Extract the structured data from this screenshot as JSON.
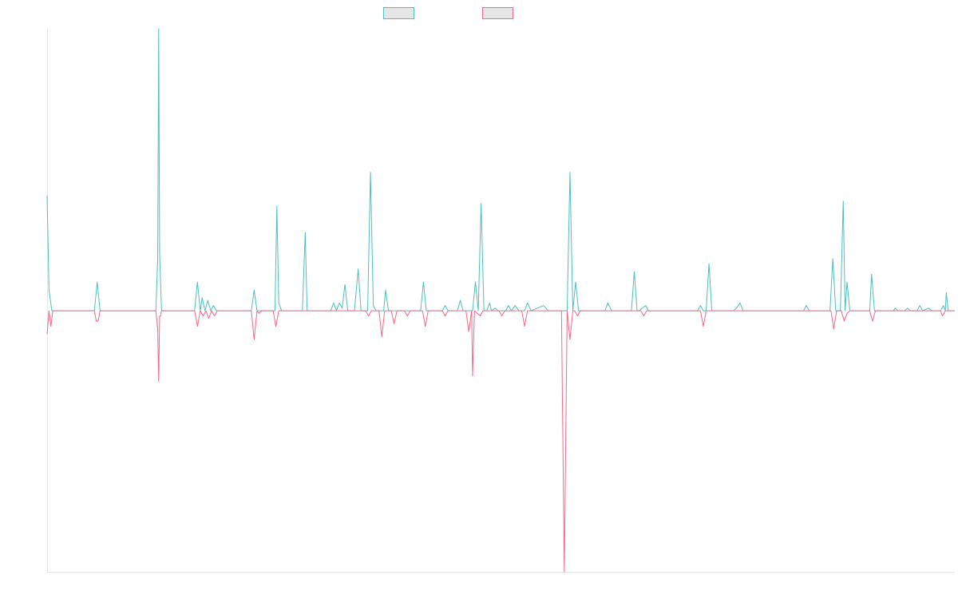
{
  "chart_data": {
    "type": "line",
    "title": "",
    "xlabel": "",
    "ylabel": "",
    "legend_position": "top",
    "grid": false,
    "ylim": [
      -100,
      108
    ],
    "series": [
      {
        "name": "",
        "color": "#4bc0c0",
        "points": [
          [
            0,
            44
          ],
          [
            2,
            8
          ],
          [
            5,
            0
          ],
          [
            12,
            0
          ],
          [
            50,
            0
          ],
          [
            53,
            11
          ],
          [
            56,
            0
          ],
          [
            115,
            0
          ],
          [
            117,
            20
          ],
          [
            118,
            108
          ],
          [
            119,
            22
          ],
          [
            121,
            0
          ],
          [
            156,
            0
          ],
          [
            159,
            11
          ],
          [
            162,
            0
          ],
          [
            164,
            5
          ],
          [
            167,
            0
          ],
          [
            170,
            4
          ],
          [
            173,
            0
          ],
          [
            176,
            2
          ],
          [
            179,
            0
          ],
          [
            216,
            0
          ],
          [
            219,
            8
          ],
          [
            222,
            0
          ],
          [
            241,
            0
          ],
          [
            243,
            40
          ],
          [
            245,
            3
          ],
          [
            248,
            0
          ],
          [
            270,
            0
          ],
          [
            273,
            30
          ],
          [
            275,
            0
          ],
          [
            300,
            0
          ],
          [
            303,
            3
          ],
          [
            306,
            0
          ],
          [
            309,
            3
          ],
          [
            312,
            1
          ],
          [
            315,
            10
          ],
          [
            318,
            0
          ],
          [
            325,
            0
          ],
          [
            329,
            16
          ],
          [
            332,
            0
          ],
          [
            339,
            0
          ],
          [
            342,
            53
          ],
          [
            345,
            2
          ],
          [
            348,
            0
          ],
          [
            356,
            0
          ],
          [
            358,
            8
          ],
          [
            361,
            0
          ],
          [
            395,
            0
          ],
          [
            398,
            11
          ],
          [
            401,
            0
          ],
          [
            418,
            0
          ],
          [
            421,
            2
          ],
          [
            424,
            0
          ],
          [
            434,
            0
          ],
          [
            437,
            4
          ],
          [
            440,
            0
          ],
          [
            450,
            0
          ],
          [
            453,
            11
          ],
          [
            456,
            0
          ],
          [
            459,
            41
          ],
          [
            462,
            0
          ],
          [
            465,
            0
          ],
          [
            468,
            3
          ],
          [
            470,
            0
          ],
          [
            474,
            1
          ],
          [
            477,
            0
          ],
          [
            485,
            0
          ],
          [
            488,
            2
          ],
          [
            491,
            0
          ],
          [
            495,
            2
          ],
          [
            499,
            0
          ],
          [
            505,
            0
          ],
          [
            508,
            3
          ],
          [
            512,
            0
          ],
          [
            525,
            2
          ],
          [
            530,
            0
          ],
          [
            550,
            0
          ],
          [
            553,
            53
          ],
          [
            556,
            0
          ],
          [
            559,
            11
          ],
          [
            562,
            0
          ],
          [
            590,
            0
          ],
          [
            593,
            3
          ],
          [
            597,
            0
          ],
          [
            618,
            0
          ],
          [
            621,
            15
          ],
          [
            624,
            0
          ],
          [
            626,
            0
          ],
          [
            633,
            2
          ],
          [
            636,
            0
          ],
          [
            688,
            0
          ],
          [
            691,
            2
          ],
          [
            694,
            0
          ],
          [
            697,
            0
          ],
          [
            700,
            18
          ],
          [
            703,
            0
          ],
          [
            726,
            0
          ],
          [
            729,
            1
          ],
          [
            733,
            3
          ],
          [
            736,
            0
          ],
          [
            800,
            0
          ],
          [
            803,
            2
          ],
          [
            806,
            0
          ],
          [
            828,
            0
          ],
          [
            831,
            20
          ],
          [
            834,
            0
          ],
          [
            839,
            0
          ],
          [
            842,
            42
          ],
          [
            844,
            0
          ],
          [
            846,
            11
          ],
          [
            849,
            0
          ],
          [
            870,
            0
          ],
          [
            872,
            14
          ],
          [
            875,
            0
          ],
          [
            895,
            0
          ],
          [
            897,
            1
          ],
          [
            900,
            0
          ],
          [
            907,
            0
          ],
          [
            910,
            1
          ],
          [
            913,
            0
          ],
          [
            920,
            0
          ],
          [
            923,
            2
          ],
          [
            926,
            0
          ],
          [
            932,
            1
          ],
          [
            936,
            0
          ],
          [
            945,
            0
          ],
          [
            948,
            2
          ],
          [
            950,
            0
          ],
          [
            951,
            7
          ],
          [
            953,
            0
          ],
          [
            960,
            0
          ]
        ]
      },
      {
        "name": "",
        "color": "#ff6384",
        "points": [
          [
            0,
            -9
          ],
          [
            2,
            0
          ],
          [
            4,
            -6
          ],
          [
            6,
            0
          ],
          [
            12,
            0
          ],
          [
            50,
            0
          ],
          [
            52,
            -4
          ],
          [
            54,
            -4
          ],
          [
            56,
            0
          ],
          [
            115,
            0
          ],
          [
            117,
            -7
          ],
          [
            118,
            -27
          ],
          [
            119,
            -2
          ],
          [
            120,
            -2
          ],
          [
            121,
            0
          ],
          [
            156,
            0
          ],
          [
            159,
            -6
          ],
          [
            162,
            0
          ],
          [
            165,
            -2
          ],
          [
            168,
            0
          ],
          [
            171,
            -3
          ],
          [
            174,
            0
          ],
          [
            177,
            -2
          ],
          [
            180,
            0
          ],
          [
            216,
            0
          ],
          [
            219,
            -11
          ],
          [
            222,
            0
          ],
          [
            224,
            -1
          ],
          [
            227,
            0
          ],
          [
            239,
            0
          ],
          [
            242,
            -6
          ],
          [
            245,
            0
          ],
          [
            337,
            0
          ],
          [
            340,
            -2
          ],
          [
            343,
            0
          ],
          [
            351,
            0
          ],
          [
            354,
            -10
          ],
          [
            357,
            0
          ],
          [
            364,
            0
          ],
          [
            367,
            -5
          ],
          [
            370,
            0
          ],
          [
            378,
            0
          ],
          [
            381,
            -2
          ],
          [
            384,
            0
          ],
          [
            397,
            0
          ],
          [
            400,
            -6
          ],
          [
            403,
            0
          ],
          [
            418,
            0
          ],
          [
            421,
            -2
          ],
          [
            424,
            0
          ],
          [
            443,
            0
          ],
          [
            446,
            -8
          ],
          [
            449,
            0
          ],
          [
            450,
            -25
          ],
          [
            452,
            0
          ],
          [
            455,
            -1
          ],
          [
            458,
            -2
          ],
          [
            461,
            0
          ],
          [
            478,
            0
          ],
          [
            481,
            -2
          ],
          [
            484,
            0
          ],
          [
            502,
            0
          ],
          [
            505,
            -6
          ],
          [
            508,
            0
          ],
          [
            544,
            0
          ],
          [
            547,
            -100
          ],
          [
            550,
            0
          ],
          [
            553,
            -11
          ],
          [
            556,
            0
          ],
          [
            558,
            0
          ],
          [
            561,
            -2
          ],
          [
            564,
            0
          ],
          [
            628,
            0
          ],
          [
            631,
            -2
          ],
          [
            634,
            0
          ],
          [
            691,
            0
          ],
          [
            694,
            -6
          ],
          [
            697,
            0
          ],
          [
            829,
            0
          ],
          [
            832,
            -7
          ],
          [
            835,
            0
          ],
          [
            840,
            0
          ],
          [
            843,
            -4
          ],
          [
            846,
            -1
          ],
          [
            849,
            0
          ],
          [
            870,
            0
          ],
          [
            873,
            -4
          ],
          [
            876,
            0
          ],
          [
            945,
            0
          ],
          [
            947,
            -2
          ],
          [
            950,
            0
          ],
          [
            960,
            0
          ]
        ]
      }
    ]
  }
}
